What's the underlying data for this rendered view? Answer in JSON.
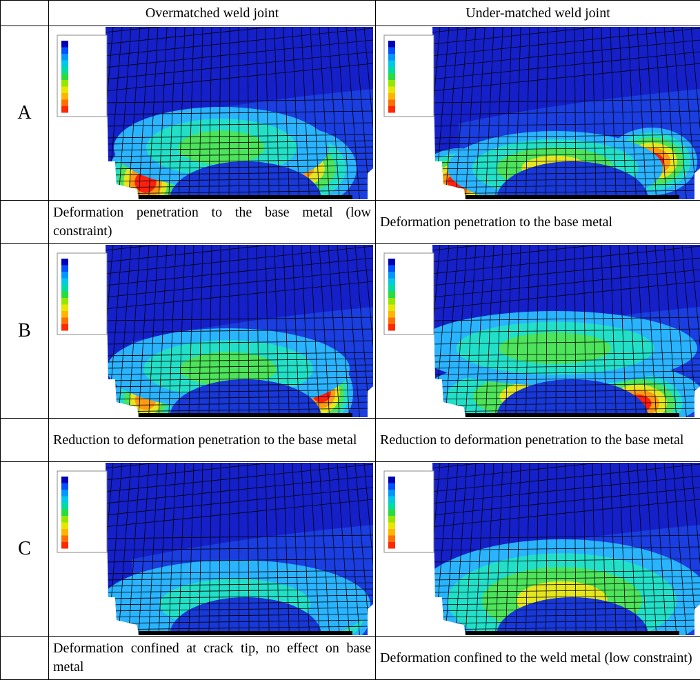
{
  "table": {
    "columns": [
      "Overmatched weld joint",
      "Under-matched weld joint"
    ],
    "rows": [
      {
        "label": "A",
        "captions": [
          "Deformation penetration to the base metal (low constraint)",
          "Deformation penetration to the base metal"
        ]
      },
      {
        "label": "B",
        "captions": [
          "Reduction to deformation penetration to the base metal",
          "Reduction to deformation penetration to the base metal"
        ]
      },
      {
        "label": "C",
        "captions": [
          "Deformation confined at crack tip, no effect on base metal",
          "Deformation confined to the weld metal (low constraint)"
        ]
      }
    ]
  }
}
